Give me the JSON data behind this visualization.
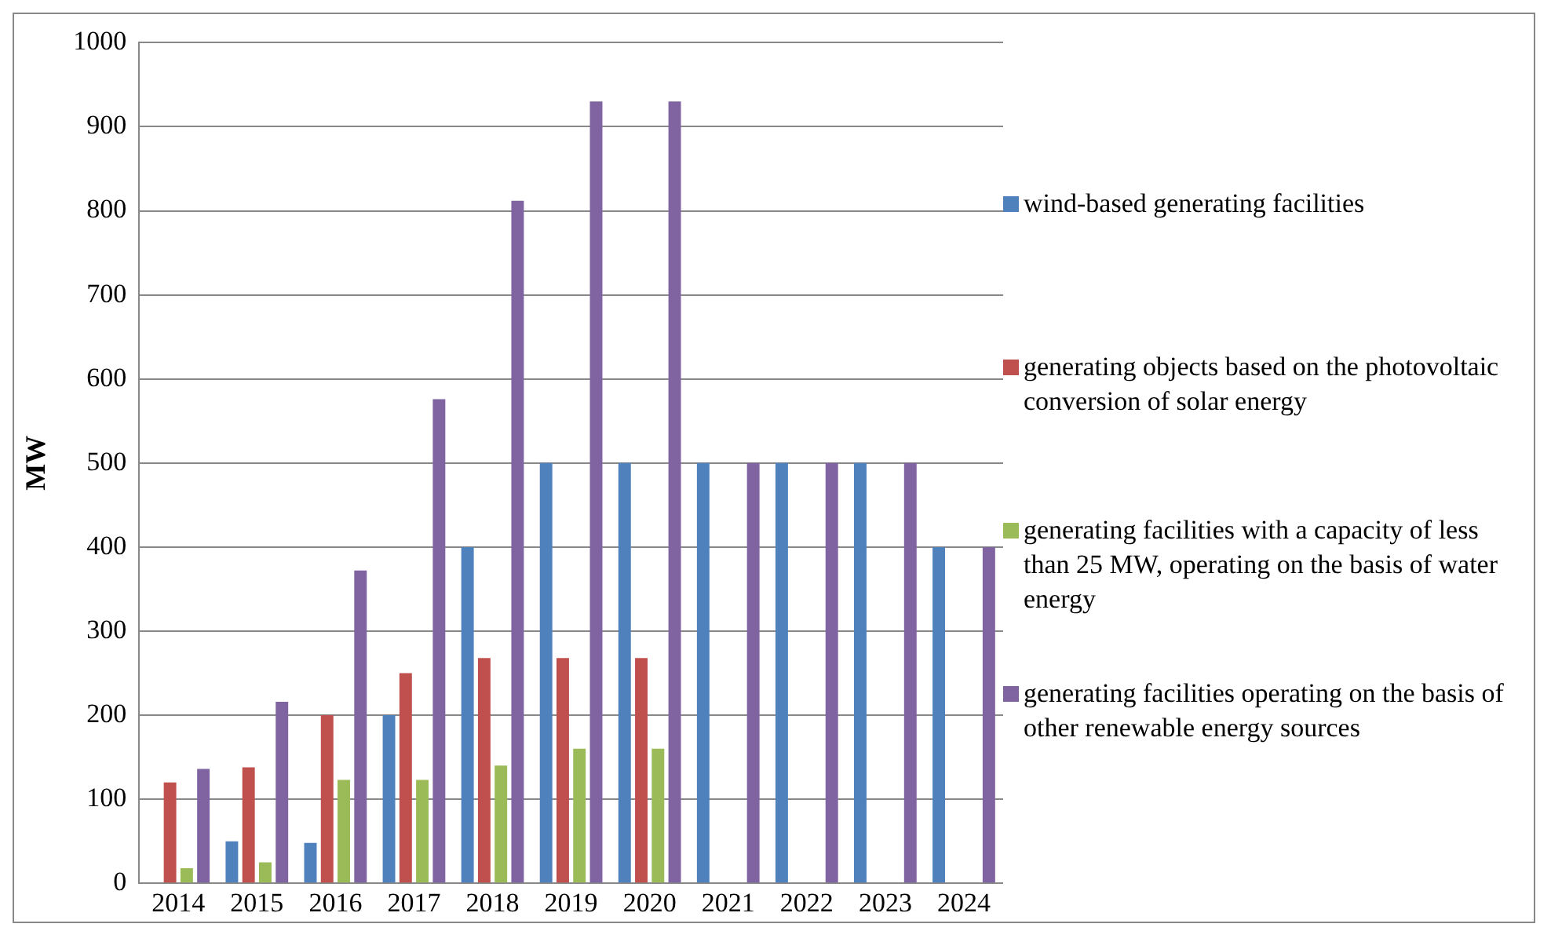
{
  "chart_data": {
    "type": "bar",
    "ylabel": "MW",
    "categories": [
      "2014",
      "2015",
      "2016",
      "2017",
      "2018",
      "2019",
      "2020",
      "2021",
      "2022",
      "2023",
      "2024"
    ],
    "series": [
      {
        "name": "wind-based generating facilities",
        "color": "#4f81bd",
        "values": [
          null,
          50,
          48,
          200,
          400,
          500,
          500,
          500,
          500,
          500,
          400
        ]
      },
      {
        "name": "generating objects based on the photovoltaic conversion of solar energy",
        "color": "#c0504d",
        "values": [
          120,
          138,
          200,
          250,
          268,
          268,
          268,
          null,
          null,
          null,
          null
        ]
      },
      {
        "name": "generating facilities with a capacity of less than 25 MW, operating on the basis of water energy",
        "color": "#9bbb59",
        "values": [
          18,
          25,
          123,
          123,
          140,
          160,
          160,
          null,
          null,
          null,
          null
        ]
      },
      {
        "name": "generating facilities operating on the basis of other renewable energy sources",
        "color": "#8064a2",
        "values": [
          136,
          216,
          372,
          576,
          812,
          930,
          930,
          500,
          500,
          500,
          400
        ]
      }
    ],
    "ylim": [
      0,
      1000
    ],
    "yticks": [
      0,
      100,
      200,
      300,
      400,
      500,
      600,
      700,
      800,
      900,
      1000
    ],
    "grid": "y",
    "legend": "right"
  }
}
